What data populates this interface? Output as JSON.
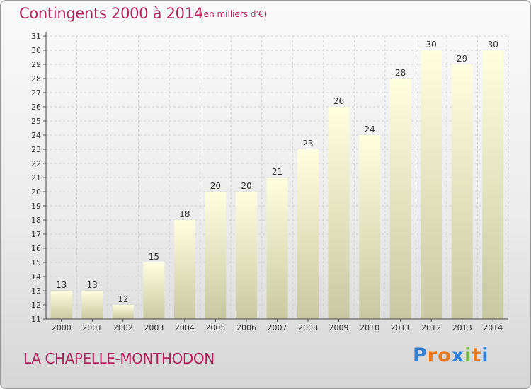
{
  "header": {
    "title": "Contingents 2000 à 2014",
    "subtitle": "(en milliers d'€)"
  },
  "footer": {
    "city": "LA CHAPELLE-MONTHODON",
    "logo": "Proxiti",
    "logo_letters": [
      {
        "char": "P",
        "color": "#2f7fd6"
      },
      {
        "char": "r",
        "color": "#e8791e"
      },
      {
        "char": "o",
        "color": "#e8791e"
      },
      {
        "char": "x",
        "color": "#2f7fd6"
      },
      {
        "char": "i",
        "color": "#7ab648"
      },
      {
        "char": "t",
        "color": "#e8791e"
      },
      {
        "char": "i",
        "color": "#2f7fd6"
      }
    ]
  },
  "colors": {
    "bar_top": "#ffffe0",
    "bar_bottom": "#c8c8a2",
    "accent": "#b0245c"
  },
  "chart_data": {
    "type": "bar",
    "categories": [
      "2000",
      "2001",
      "2002",
      "2003",
      "2004",
      "2005",
      "2006",
      "2007",
      "2008",
      "2009",
      "2010",
      "2011",
      "2012",
      "2013",
      "2014"
    ],
    "values": [
      13,
      13,
      12,
      15,
      18,
      20,
      20,
      21,
      23,
      26,
      24,
      28,
      30,
      29,
      30
    ],
    "ylim": [
      11,
      31
    ],
    "yticks": [
      11,
      12,
      13,
      14,
      15,
      16,
      17,
      18,
      19,
      20,
      21,
      22,
      23,
      24,
      25,
      26,
      27,
      28,
      29,
      30,
      31
    ],
    "grid": true,
    "title": "Contingents 2000 à 2014",
    "subtitle": "(en milliers d'€)",
    "xlabel": "",
    "ylabel": ""
  }
}
